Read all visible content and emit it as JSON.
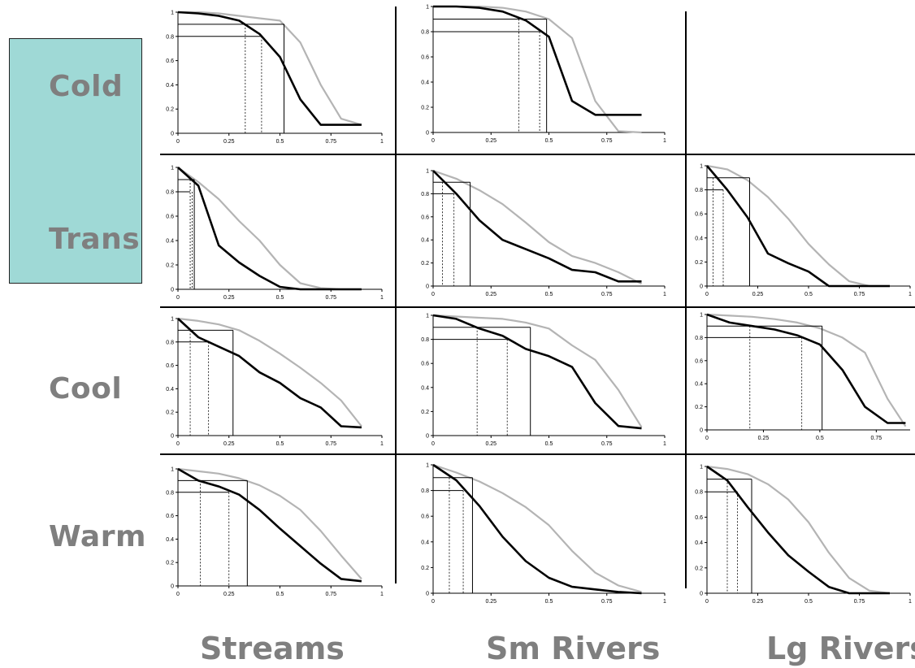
{
  "row_labels": [
    "Cold",
    "Trans",
    "Cool",
    "Warm"
  ],
  "column_labels": [
    "Streams",
    "Sm Rivers",
    "Lg Rivers"
  ],
  "colors": {
    "teal_box": "#9fd9d6",
    "black_series": "#000000",
    "gray_series": "#b4b4b4",
    "label_text": "#7f7f7f"
  },
  "chart_data": [
    {
      "type": "line",
      "id": "cold-streams",
      "xlim": [
        0,
        1
      ],
      "ylim": [
        0,
        1
      ],
      "xticks": [
        "0",
        "0.25",
        "0.5",
        "0.75",
        "1"
      ],
      "yticks": [
        "0",
        "0.2",
        "0.4",
        "0.6",
        "0.8",
        "1"
      ],
      "x": [
        0,
        0.1,
        0.2,
        0.3,
        0.4,
        0.5,
        0.6,
        0.7,
        0.8,
        0.9
      ],
      "series": [
        {
          "color": "#b4b4b4",
          "values": [
            1,
            1,
            0.99,
            0.97,
            0.95,
            0.93,
            0.75,
            0.4,
            0.12,
            0.07
          ]
        },
        {
          "color": "#000000",
          "values": [
            1,
            0.99,
            0.97,
            0.93,
            0.82,
            0.63,
            0.28,
            0.07,
            0.07,
            0.07
          ]
        }
      ],
      "guides": {
        "h90_end": 0.52,
        "h80_end": 0.41,
        "dot1": 0.33,
        "dot2": 0.41
      }
    },
    {
      "type": "line",
      "id": "cold-smrivers",
      "xlim": [
        0,
        1
      ],
      "ylim": [
        0,
        1
      ],
      "xticks": [
        "0",
        "0.25",
        "0.5",
        "0.75",
        "1"
      ],
      "yticks": [
        "0",
        "0.2",
        "0.4",
        "0.6",
        "0.8",
        "1"
      ],
      "x": [
        0,
        0.1,
        0.2,
        0.3,
        0.4,
        0.5,
        0.6,
        0.7,
        0.8,
        0.9
      ],
      "series": [
        {
          "color": "#b4b4b4",
          "values": [
            1,
            1,
            1,
            0.99,
            0.96,
            0.9,
            0.75,
            0.25,
            0.01,
            0
          ]
        },
        {
          "color": "#000000",
          "values": [
            1,
            1,
            0.99,
            0.96,
            0.89,
            0.76,
            0.25,
            0.14,
            0.14,
            0.14
          ]
        }
      ],
      "guides": {
        "h90_end": 0.49,
        "h80_end": 0.46,
        "dot1": 0.37,
        "dot2": 0.46
      }
    },
    {
      "type": "line",
      "id": "trans-streams",
      "xlim": [
        0,
        1
      ],
      "ylim": [
        0,
        1
      ],
      "xticks": [
        "0",
        "0.25",
        "0.5",
        "0.75",
        "1"
      ],
      "yticks": [
        "0",
        "0.2",
        "0.4",
        "0.6",
        "0.8",
        "1"
      ],
      "x": [
        0,
        0.1,
        0.2,
        0.3,
        0.4,
        0.5,
        0.6,
        0.7,
        0.8,
        0.9
      ],
      "series": [
        {
          "color": "#b4b4b4",
          "values": [
            1,
            0.88,
            0.74,
            0.56,
            0.4,
            0.2,
            0.05,
            0.01,
            0,
            0
          ]
        },
        {
          "color": "#000000",
          "values": [
            1,
            0.85,
            0.36,
            0.22,
            0.11,
            0.02,
            0,
            0,
            0,
            0
          ]
        }
      ],
      "guides": {
        "h90_end": 0.08,
        "h80_end": 0.06,
        "dot1": 0.06,
        "dot2": 0.07
      }
    },
    {
      "type": "line",
      "id": "trans-smrivers",
      "xlim": [
        0,
        1
      ],
      "ylim": [
        0,
        1
      ],
      "xticks": [
        "0",
        "0.25",
        "0.5",
        "0.75",
        "1"
      ],
      "yticks": [
        "0",
        "0.2",
        "0.4",
        "0.6",
        "0.8",
        "1"
      ],
      "x": [
        0,
        0.1,
        0.2,
        0.3,
        0.4,
        0.5,
        0.6,
        0.7,
        0.8,
        0.9
      ],
      "series": [
        {
          "color": "#b4b4b4",
          "values": [
            1,
            0.93,
            0.83,
            0.71,
            0.55,
            0.38,
            0.26,
            0.2,
            0.12,
            0.02
          ]
        },
        {
          "color": "#000000",
          "values": [
            1,
            0.8,
            0.57,
            0.4,
            0.32,
            0.24,
            0.14,
            0.12,
            0.04,
            0.04
          ]
        }
      ],
      "guides": {
        "h90_end": 0.16,
        "h80_end": 0.09,
        "dot1": 0.04,
        "dot2": 0.09
      }
    },
    {
      "type": "line",
      "id": "trans-lgrivers",
      "xlim": [
        0,
        1
      ],
      "ylim": [
        0,
        1
      ],
      "xticks": [
        "0",
        "0.25",
        "0.5",
        "0.75",
        "1"
      ],
      "yticks": [
        "0",
        "0.2",
        "0.4",
        "0.6",
        "0.8",
        "1"
      ],
      "x": [
        0,
        0.1,
        0.2,
        0.3,
        0.4,
        0.5,
        0.6,
        0.7,
        0.8,
        0.9
      ],
      "series": [
        {
          "color": "#b4b4b4",
          "values": [
            1,
            0.97,
            0.88,
            0.74,
            0.56,
            0.35,
            0.18,
            0.04,
            0,
            0
          ]
        },
        {
          "color": "#000000",
          "values": [
            1,
            0.8,
            0.57,
            0.27,
            0.19,
            0.12,
            0,
            0,
            0,
            0
          ]
        }
      ],
      "guides": {
        "h90_end": 0.21,
        "h80_end": 0.08,
        "dot1": 0.03,
        "dot2": 0.08
      }
    },
    {
      "type": "line",
      "id": "cool-streams",
      "xlim": [
        0,
        1
      ],
      "ylim": [
        0,
        1
      ],
      "xticks": [
        "0",
        "0.25",
        "0.5",
        "0.75",
        "1"
      ],
      "yticks": [
        "0",
        "0.2",
        "0.4",
        "0.6",
        "0.8",
        "1"
      ],
      "x": [
        0,
        0.1,
        0.2,
        0.3,
        0.4,
        0.5,
        0.6,
        0.7,
        0.8,
        0.9
      ],
      "series": [
        {
          "color": "#b4b4b4",
          "values": [
            1,
            0.98,
            0.95,
            0.9,
            0.81,
            0.7,
            0.58,
            0.45,
            0.3,
            0.08
          ]
        },
        {
          "color": "#000000",
          "values": [
            1,
            0.84,
            0.76,
            0.68,
            0.54,
            0.45,
            0.32,
            0.24,
            0.08,
            0.07
          ]
        }
      ],
      "guides": {
        "h90_end": 0.27,
        "h80_end": 0.15,
        "dot1": 0.06,
        "dot2": 0.15
      }
    },
    {
      "type": "line",
      "id": "cool-smrivers",
      "xlim": [
        0,
        1
      ],
      "ylim": [
        0,
        1
      ],
      "xticks": [
        "0",
        "0.25",
        "0.5",
        "0.75",
        "1"
      ],
      "yticks": [
        "0",
        "0.2",
        "0.4",
        "0.6",
        "0.8",
        "1"
      ],
      "x": [
        0,
        0.1,
        0.2,
        0.3,
        0.4,
        0.5,
        0.6,
        0.7,
        0.8,
        0.9
      ],
      "series": [
        {
          "color": "#b4b4b4",
          "values": [
            1,
            0.99,
            0.98,
            0.97,
            0.94,
            0.89,
            0.75,
            0.63,
            0.38,
            0.07
          ]
        },
        {
          "color": "#000000",
          "values": [
            1,
            0.97,
            0.89,
            0.83,
            0.72,
            0.66,
            0.57,
            0.27,
            0.08,
            0.06
          ]
        }
      ],
      "guides": {
        "h90_end": 0.42,
        "h80_end": 0.32,
        "dot1": 0.19,
        "dot2": 0.32
      }
    },
    {
      "type": "line",
      "id": "cool-lgrivers",
      "xlim": [
        0,
        0.9
      ],
      "ylim": [
        0,
        1
      ],
      "xticks": [
        "0",
        "0.25",
        "0.5",
        "0.75"
      ],
      "yticks": [
        "0",
        "0.2",
        "0.4",
        "0.6",
        "0.8",
        "1"
      ],
      "x": [
        0,
        0.1,
        0.2,
        0.3,
        0.4,
        0.5,
        0.6,
        0.7,
        0.8,
        0.88
      ],
      "series": [
        {
          "color": "#b4b4b4",
          "values": [
            1,
            0.99,
            0.98,
            0.96,
            0.93,
            0.88,
            0.8,
            0.67,
            0.27,
            0.03
          ]
        },
        {
          "color": "#000000",
          "values": [
            1,
            0.93,
            0.9,
            0.87,
            0.82,
            0.74,
            0.52,
            0.2,
            0.06,
            0.06
          ]
        }
      ],
      "guides": {
        "h90_end": 0.51,
        "h80_end": 0.42,
        "dot1": 0.19,
        "dot2": 0.42
      }
    },
    {
      "type": "line",
      "id": "warm-streams",
      "xlim": [
        0,
        1
      ],
      "ylim": [
        0,
        1
      ],
      "xticks": [
        "0",
        "0.25",
        "0.5",
        "0.75",
        "1"
      ],
      "yticks": [
        "0",
        "0.2",
        "0.4",
        "0.6",
        "0.8",
        "1"
      ],
      "x": [
        0,
        0.1,
        0.2,
        0.3,
        0.4,
        0.5,
        0.6,
        0.7,
        0.8,
        0.9
      ],
      "series": [
        {
          "color": "#b4b4b4",
          "values": [
            1,
            0.98,
            0.96,
            0.92,
            0.86,
            0.77,
            0.65,
            0.47,
            0.26,
            0.06
          ]
        },
        {
          "color": "#000000",
          "values": [
            1,
            0.9,
            0.85,
            0.78,
            0.65,
            0.49,
            0.34,
            0.19,
            0.06,
            0.04
          ]
        }
      ],
      "guides": {
        "h90_end": 0.34,
        "h80_end": 0.25,
        "dot1": 0.11,
        "dot2": 0.25
      }
    },
    {
      "type": "line",
      "id": "warm-smrivers",
      "xlim": [
        0,
        1
      ],
      "ylim": [
        0,
        1
      ],
      "xticks": [
        "0",
        "0.25",
        "0.5",
        "0.75",
        "1"
      ],
      "yticks": [
        "0",
        "0.2",
        "0.4",
        "0.6",
        "0.8",
        "1"
      ],
      "x": [
        0,
        0.1,
        0.2,
        0.3,
        0.4,
        0.5,
        0.6,
        0.7,
        0.8,
        0.9
      ],
      "series": [
        {
          "color": "#b4b4b4",
          "values": [
            1,
            0.94,
            0.87,
            0.78,
            0.67,
            0.53,
            0.33,
            0.16,
            0.06,
            0.01
          ]
        },
        {
          "color": "#000000",
          "values": [
            1,
            0.88,
            0.68,
            0.44,
            0.25,
            0.12,
            0.05,
            0.03,
            0.01,
            0
          ]
        }
      ],
      "guides": {
        "h90_end": 0.17,
        "h80_end": 0.13,
        "dot1": 0.07,
        "dot2": 0.13
      }
    },
    {
      "type": "line",
      "id": "warm-lgrivers",
      "xlim": [
        0,
        1
      ],
      "ylim": [
        0,
        1
      ],
      "xticks": [
        "0",
        "0.25",
        "0.5",
        "0.75",
        "1"
      ],
      "yticks": [
        "0",
        "0.2",
        "0.4",
        "0.6",
        "0.8",
        "1"
      ],
      "x": [
        0,
        0.1,
        0.2,
        0.3,
        0.4,
        0.5,
        0.6,
        0.7,
        0.8,
        0.9
      ],
      "series": [
        {
          "color": "#b4b4b4",
          "values": [
            1,
            0.98,
            0.94,
            0.86,
            0.74,
            0.56,
            0.32,
            0.12,
            0.02,
            0
          ]
        },
        {
          "color": "#000000",
          "values": [
            1,
            0.89,
            0.68,
            0.48,
            0.3,
            0.17,
            0.05,
            0,
            0,
            0
          ]
        }
      ],
      "guides": {
        "h90_end": 0.22,
        "h80_end": 0.15,
        "dot1": 0.1,
        "dot2": 0.15
      }
    }
  ]
}
